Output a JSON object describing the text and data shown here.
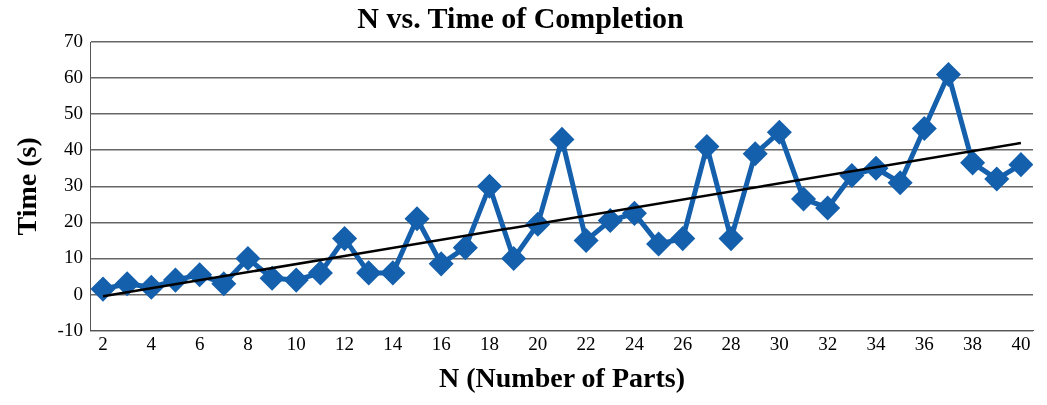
{
  "chart_data": {
    "type": "line",
    "title": "N vs. Time of Completion",
    "xlabel": "N (Number of Parts)",
    "ylabel": "Time (s)",
    "x": [
      2,
      3,
      4,
      5,
      6,
      7,
      8,
      9,
      10,
      11,
      12,
      13,
      14,
      15,
      16,
      17,
      18,
      19,
      20,
      21,
      22,
      23,
      24,
      25,
      26,
      27,
      28,
      29,
      30,
      31,
      32,
      33,
      34,
      35,
      36,
      37,
      38,
      39,
      40
    ],
    "series": [
      {
        "color": "#1560ac",
        "marker": "diamond",
        "values": [
          1.5,
          3,
          2,
          4,
          5.5,
          3,
          10,
          4.5,
          4,
          6,
          15.5,
          6,
          6,
          21,
          8.5,
          13,
          30,
          10,
          19.5,
          43,
          15,
          20.5,
          22.5,
          14,
          15.5,
          41,
          15.5,
          39,
          45,
          26.5,
          24,
          33,
          35,
          31,
          46,
          61,
          36.5,
          32,
          36
        ]
      },
      {
        "color": "#000000",
        "marker": "none",
        "x": [
          2,
          40
        ],
        "values": [
          -0.5,
          42
        ]
      }
    ],
    "xlim": [
      1.5,
      40.5
    ],
    "xticks": [
      2,
      4,
      6,
      8,
      10,
      12,
      14,
      16,
      18,
      20,
      22,
      24,
      26,
      28,
      30,
      32,
      34,
      36,
      38,
      40
    ],
    "ylim": [
      -10,
      70
    ],
    "yticks": [
      -10,
      0,
      10,
      20,
      30,
      40,
      50,
      60,
      70
    ],
    "grid": "y",
    "legend": false
  }
}
